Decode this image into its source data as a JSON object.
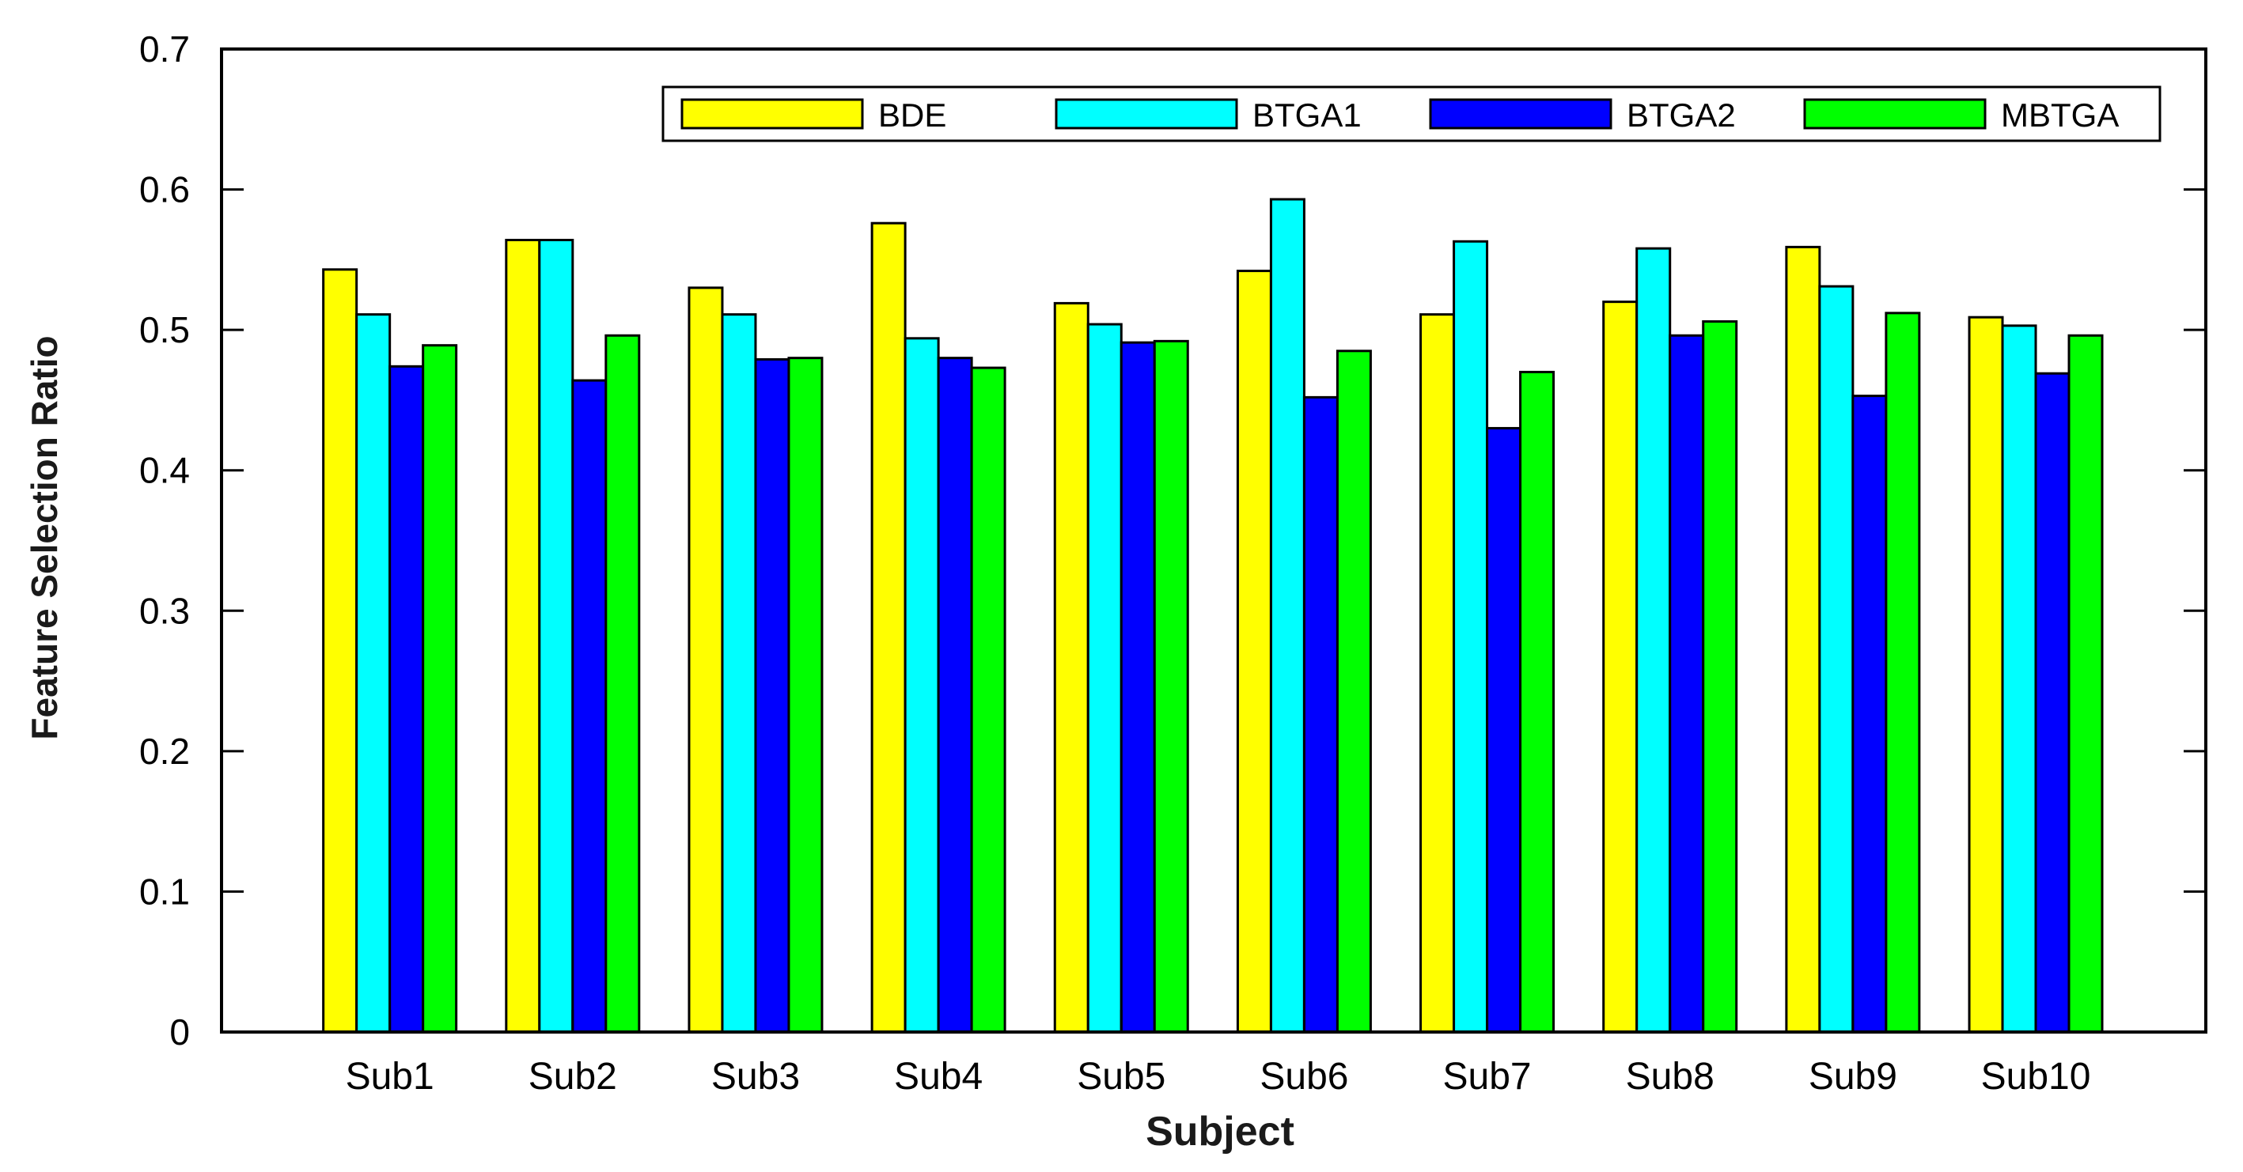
{
  "chart_data": {
    "type": "bar",
    "title": "",
    "xlabel": "Subject",
    "ylabel": "Feature Selection Ratio",
    "ylim": [
      0,
      0.7
    ],
    "yticks": [
      "0",
      "0.1",
      "0.2",
      "0.3",
      "0.4",
      "0.5",
      "0.6",
      "0.7"
    ],
    "grid": false,
    "legend_position": "top-right",
    "categories": [
      "Sub1",
      "Sub2",
      "Sub3",
      "Sub4",
      "Sub5",
      "Sub6",
      "Sub7",
      "Sub8",
      "Sub9",
      "Sub10"
    ],
    "series": [
      {
        "name": "BDE",
        "color": "#ffff00",
        "values": [
          0.543,
          0.564,
          0.53,
          0.576,
          0.519,
          0.542,
          0.511,
          0.52,
          0.559,
          0.509
        ]
      },
      {
        "name": "BTGA1",
        "color": "#00ffff",
        "values": [
          0.511,
          0.564,
          0.511,
          0.494,
          0.504,
          0.593,
          0.563,
          0.558,
          0.531,
          0.503
        ]
      },
      {
        "name": "BTGA2",
        "color": "#0000ff",
        "values": [
          0.474,
          0.464,
          0.479,
          0.48,
          0.491,
          0.452,
          0.43,
          0.496,
          0.453,
          0.469
        ]
      },
      {
        "name": "MBTGA",
        "color": "#00ff00",
        "values": [
          0.489,
          0.496,
          0.48,
          0.473,
          0.492,
          0.485,
          0.47,
          0.506,
          0.512,
          0.496
        ]
      }
    ]
  }
}
